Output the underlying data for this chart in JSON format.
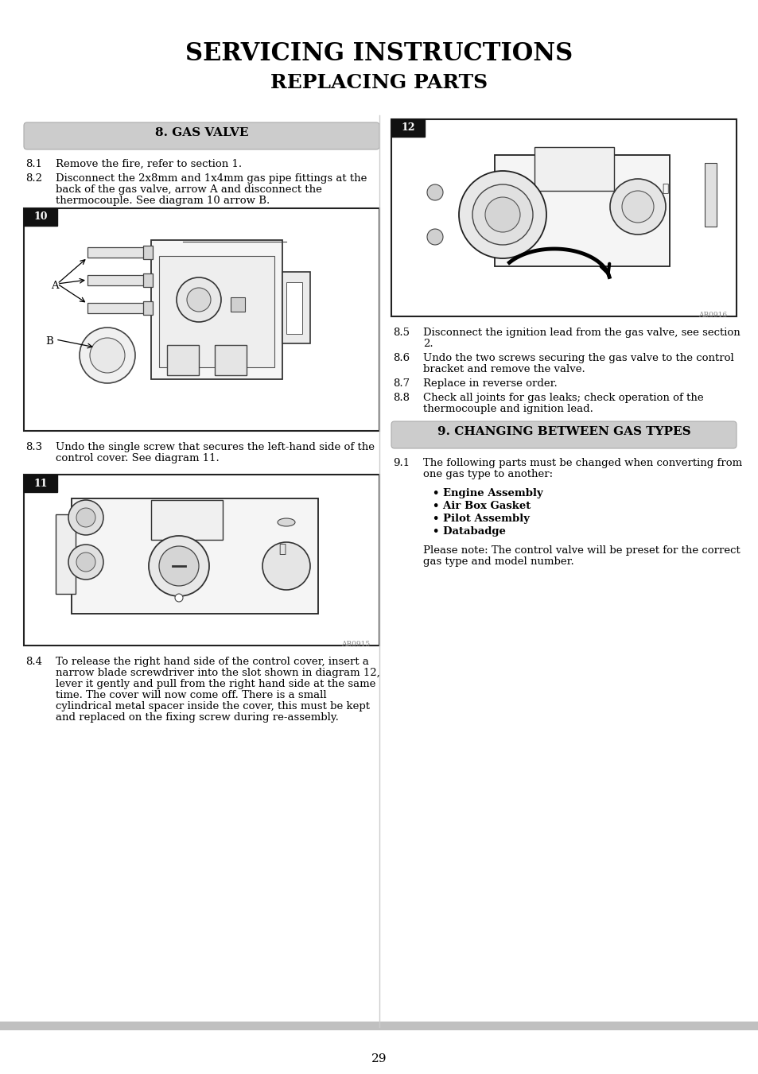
{
  "title_line1": "SERVICING INSTRUCTIONS",
  "title_line2": "REPLACING PARTS",
  "page_number": "29",
  "bg_color": "#ffffff",
  "section8_header": "8. GAS VALVE",
  "section9_header": "9. CHANGING BETWEEN GAS TYPES",
  "section_header_bg": "#cccccc",
  "items_8_left": [
    [
      "8.1",
      "Remove the fire, refer to section 1."
    ],
    [
      "8.2",
      "Disconnect the 2x8mm and 1x4mm gas pipe fittings at the\nback of the gas valve, arrow A and disconnect the\nthermocouple. See diagram 10 arrow B."
    ]
  ],
  "item_83": [
    "8.3",
    "Undo the single screw that secures the left-hand side of the\ncontrol cover. See diagram 11."
  ],
  "item_84": [
    "8.4",
    "To release the right hand side of the control cover, insert a\nnarrow blade screwdriver into the slot shown in diagram 12,\nlever it gently and pull from the right hand side at the same\ntime. The cover will now come off. There is a small\ncylindrical metal spacer inside the cover, this must be kept\nand replaced on the fixing screw during re-assembly."
  ],
  "items_8_right": [
    [
      "8.5",
      "Disconnect the ignition lead from the gas valve, see section\n2."
    ],
    [
      "8.6",
      "Undo the two screws securing the gas valve to the control\nbracket and remove the valve."
    ],
    [
      "8.7",
      "Replace in reverse order."
    ],
    [
      "8.8",
      "Check all joints for gas leaks; check operation of the\nthermocouple and ignition lead."
    ]
  ],
  "items_9": [
    [
      "9.1",
      "The following parts must be changed when converting from\none gas type to another:"
    ]
  ],
  "bullet_items": [
    "Engine Assembly",
    "Air Box Gasket",
    "Pilot Assembly",
    "Databadge"
  ],
  "note_9": "Please note: The control valve will be preset for the correct\ngas type and model number.",
  "font_size_body": 9.5,
  "font_size_header": 11,
  "font_size_title1": 22,
  "font_size_title2": 18
}
